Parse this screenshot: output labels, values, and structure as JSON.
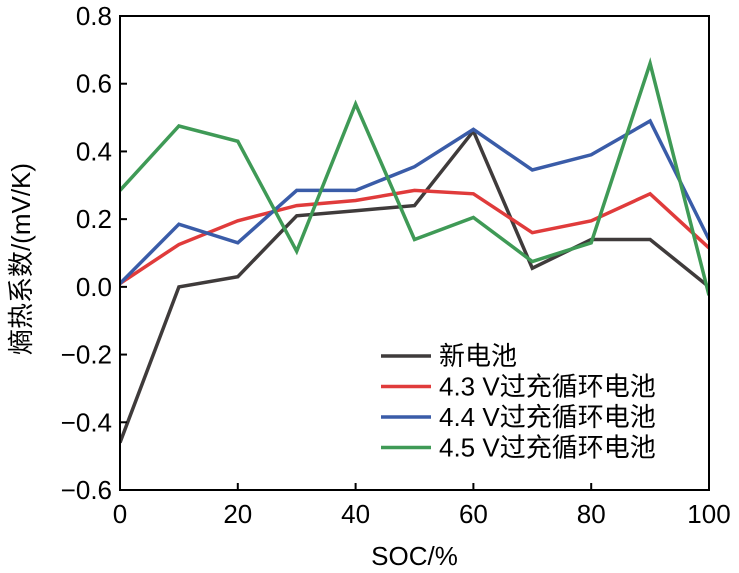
{
  "chart_data": {
    "type": "line",
    "title": "",
    "xlabel": "SOC/%",
    "ylabel": "熵热系数/(mV/K)",
    "xlim": [
      0,
      100
    ],
    "ylim": [
      -0.6,
      0.8
    ],
    "xticks": [
      0,
      20,
      40,
      60,
      80,
      100
    ],
    "yticks": [
      -0.6,
      -0.4,
      -0.2,
      0.0,
      0.2,
      0.4,
      0.6,
      0.8
    ],
    "xtick_labels": [
      "0",
      "20",
      "40",
      "60",
      "80",
      "100"
    ],
    "ytick_labels": [
      "−0.6",
      "−0.4",
      "−0.2",
      "0.0",
      "0.2",
      "0.4",
      "0.6",
      "0.8"
    ],
    "grid": false,
    "legend_position": "bottom-right",
    "x": [
      0,
      10,
      20,
      30,
      40,
      50,
      60,
      70,
      80,
      90,
      100
    ],
    "series": [
      {
        "name": "新电池",
        "color": "#3f3b3b",
        "values": [
          -0.46,
          0.0,
          0.03,
          0.21,
          0.225,
          0.24,
          0.46,
          0.055,
          0.14,
          0.14,
          0.0
        ]
      },
      {
        "name": "4.3 V过充循环电池",
        "color": "#e03b3b",
        "values": [
          0.01,
          0.125,
          0.195,
          0.24,
          0.255,
          0.285,
          0.275,
          0.16,
          0.195,
          0.275,
          0.115
        ]
      },
      {
        "name": "4.4 V过充循环电池",
        "color": "#3a5ca8",
        "values": [
          0.01,
          0.185,
          0.13,
          0.285,
          0.285,
          0.355,
          0.465,
          0.345,
          0.39,
          0.49,
          0.14
        ]
      },
      {
        "name": "4.5 V过充循环电池",
        "color": "#3f9a56",
        "values": [
          0.285,
          0.475,
          0.43,
          0.105,
          0.54,
          0.14,
          0.205,
          0.075,
          0.13,
          0.66,
          -0.025
        ]
      }
    ]
  }
}
